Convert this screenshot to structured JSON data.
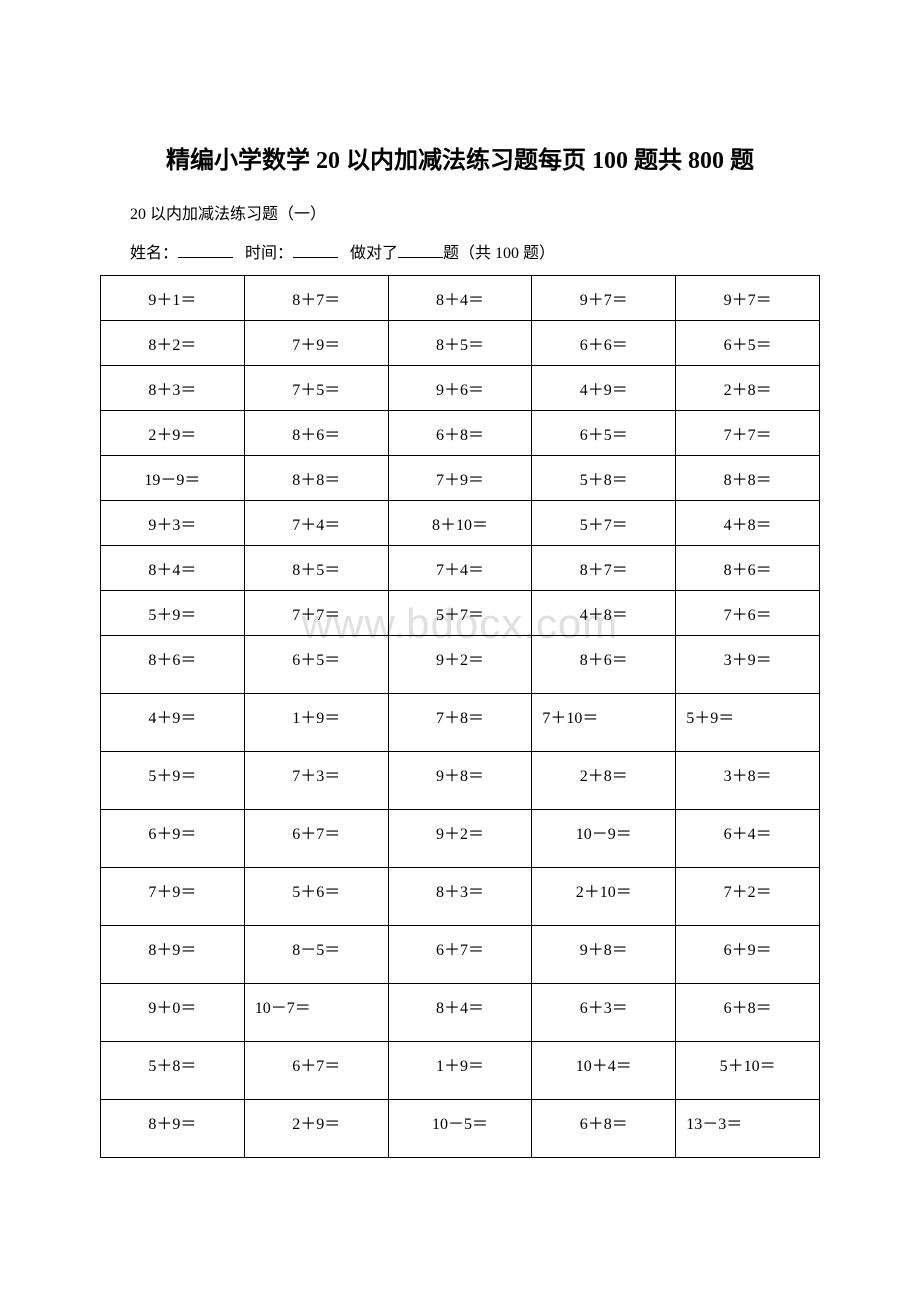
{
  "title": "精编小学数学 20 以内加减法练习题每页 100 题共 800 题",
  "subtitle": "20 以内加减法练习题（一）",
  "info": {
    "name_label": "姓名：",
    "time_label": "时间：",
    "correct_label": "做对了",
    "correct_suffix": "题（共 100 题）"
  },
  "watermark": "www.bdocx.com",
  "colors": {
    "text": "#000000",
    "background": "#ffffff",
    "border": "#000000",
    "watermark": "#e0e0e0"
  },
  "table": {
    "columns": 5,
    "rows": [
      {
        "cells": [
          "9＋1＝",
          "8＋7＝",
          "8＋4＝",
          "9＋7＝",
          "9＋7＝"
        ],
        "tall": false
      },
      {
        "cells": [
          "8＋2＝",
          "7＋9＝",
          "8＋5＝",
          "6＋6＝",
          "6＋5＝"
        ],
        "tall": false
      },
      {
        "cells": [
          "8＋3＝",
          "7＋5＝",
          "9＋6＝",
          "4＋9＝",
          "2＋8＝"
        ],
        "tall": false
      },
      {
        "cells": [
          "2＋9＝",
          "8＋6＝",
          "6＋8＝",
          "6＋5＝",
          "7＋7＝"
        ],
        "tall": false
      },
      {
        "cells": [
          "19－9＝",
          "8＋8＝",
          "7＋9＝",
          "5＋8＝",
          "8＋8＝"
        ],
        "tall": false
      },
      {
        "cells": [
          "9＋3＝",
          "7＋4＝",
          "8＋10＝",
          "5＋7＝",
          "4＋8＝"
        ],
        "tall": false
      },
      {
        "cells": [
          "8＋4＝",
          "8＋5＝",
          "7＋4＝",
          "8＋7＝",
          "8＋6＝"
        ],
        "tall": false
      },
      {
        "cells": [
          "5＋9＝",
          "7＋7＝",
          "5＋7＝",
          "4＋8＝",
          "7＋6＝"
        ],
        "tall": false
      },
      {
        "cells": [
          "8＋6＝",
          "6＋5＝",
          "9＋2＝",
          "8＋6＝",
          "3＋9＝"
        ],
        "tall": true
      },
      {
        "cells": [
          "4＋9＝",
          "1＋9＝",
          "7＋8＝",
          "7＋10＝",
          "5＋9＝"
        ],
        "tall": true,
        "align": [
          "c",
          "c",
          "c",
          "l",
          "l"
        ]
      },
      {
        "cells": [
          "5＋9＝",
          "7＋3＝",
          "9＋8＝",
          "2＋8＝",
          "3＋8＝"
        ],
        "tall": true
      },
      {
        "cells": [
          "6＋9＝",
          "6＋7＝",
          "9＋2＝",
          "10－9＝",
          "6＋4＝"
        ],
        "tall": true
      },
      {
        "cells": [
          "7＋9＝",
          "5＋6＝",
          "8＋3＝",
          "2＋10＝",
          "7＋2＝"
        ],
        "tall": true
      },
      {
        "cells": [
          "8＋9＝",
          "8－5＝",
          "6＋7＝",
          "9＋8＝",
          "6＋9＝"
        ],
        "tall": true
      },
      {
        "cells": [
          "9＋0＝",
          "10－7＝",
          "8＋4＝",
          "6＋3＝",
          "6＋8＝"
        ],
        "tall": true,
        "align": [
          "c",
          "l",
          "c",
          "c",
          "c"
        ]
      },
      {
        "cells": [
          "5＋8＝",
          "6＋7＝",
          "1＋9＝",
          "10＋4＝",
          "5＋10＝"
        ],
        "tall": true
      },
      {
        "cells": [
          "8＋9＝",
          "2＋9＝",
          "10－5＝",
          "6＋8＝",
          "13－3＝"
        ],
        "tall": true,
        "align": [
          "c",
          "c",
          "c",
          "c",
          "l"
        ]
      }
    ]
  }
}
